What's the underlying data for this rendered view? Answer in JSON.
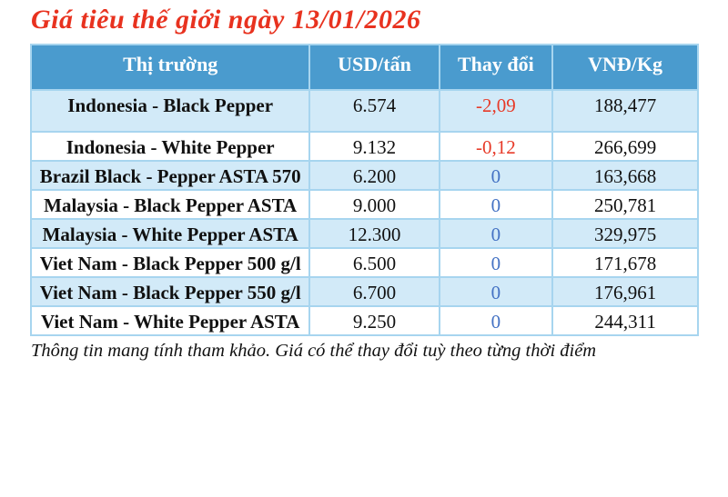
{
  "title": "Giá tiêu thế giới ngày 13/01/2026",
  "footnote": "Thông tin mang tính tham khảo. Giá có thể thay đổi tuỳ theo từng thời điểm",
  "colors": {
    "title_red": "#e8321f",
    "header_background": "#4a9bce",
    "row_alternate_blue": "#d2eaf8",
    "table_border_blue": "#a7d5ef",
    "negative_change_red": "#e73a28",
    "zero_change_blue": "#4472c4"
  },
  "chart_data": {
    "type": "table",
    "title": "Giá tiêu thế giới ngày 13/01/2026",
    "columns": [
      "Thị trường",
      "USD/tấn",
      "Thay đổi",
      "VNĐ/Kg"
    ],
    "rows": [
      {
        "market": "Indonesia - Black Pepper",
        "usd": "6.574",
        "change": "-2,09",
        "vnd": "188,477"
      },
      {
        "market": "Indonesia - White Pepper",
        "usd": "9.132",
        "change": "-0,12",
        "vnd": "266,699"
      },
      {
        "market": "Brazil Black - Pepper ASTA 570",
        "usd": "6.200",
        "change": "0",
        "vnd": "163,668"
      },
      {
        "market": "Malaysia - Black Pepper ASTA",
        "usd": "9.000",
        "change": "0",
        "vnd": "250,781"
      },
      {
        "market": "Malaysia - White Pepper ASTA",
        "usd": "12.300",
        "change": "0",
        "vnd": "329,975"
      },
      {
        "market": "Viet Nam - Black Pepper 500 g/l",
        "usd": "6.500",
        "change": "0",
        "vnd": "171,678"
      },
      {
        "market": "Viet Nam - Black Pepper 550 g/l",
        "usd": "6.700",
        "change": "0",
        "vnd": "176,961"
      },
      {
        "market": "Viet Nam - White Pepper ASTA",
        "usd": "9.250",
        "change": "0",
        "vnd": "244,311"
      }
    ],
    "footnote": "Thông tin mang tính tham khảo. Giá có thể thay đổi tuỳ theo từng thời điểm"
  }
}
